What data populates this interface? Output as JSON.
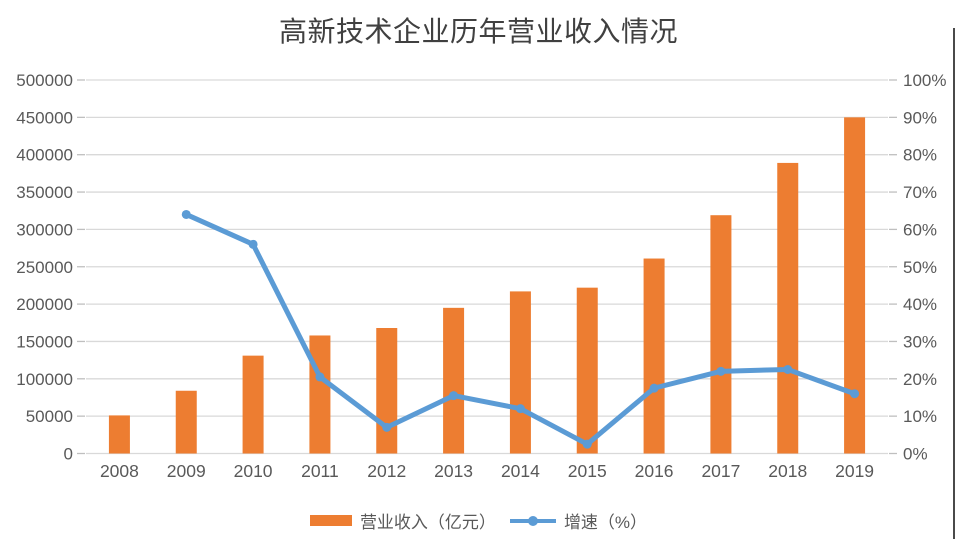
{
  "chart": {
    "title": "高新技术企业历年营业收入情况"
  },
  "chart_data": {
    "type": "bar+line",
    "title": "高新技术企业历年营业收入情况",
    "categories": [
      "2008",
      "2009",
      "2010",
      "2011",
      "2012",
      "2013",
      "2014",
      "2015",
      "2016",
      "2017",
      "2018",
      "2019"
    ],
    "series": [
      {
        "name": "营业收入（亿元）",
        "type": "bar",
        "axis": "left",
        "color": "#ED7D31",
        "values": [
          51000,
          84000,
          131000,
          158000,
          168000,
          195000,
          217000,
          222000,
          261000,
          319000,
          389000,
          450000
        ]
      },
      {
        "name": "增速（%）",
        "type": "line",
        "axis": "right",
        "color": "#5B9BD5",
        "values": [
          null,
          64,
          56,
          20.5,
          7,
          15.5,
          12,
          2.5,
          17.5,
          22,
          22.5,
          16
        ]
      }
    ],
    "left_axis": {
      "min": 0,
      "max": 500000,
      "step": 50000,
      "tick_labels": [
        "0",
        "50000",
        "100000",
        "150000",
        "200000",
        "250000",
        "300000",
        "350000",
        "400000",
        "450000",
        "500000"
      ]
    },
    "right_axis": {
      "min": 0,
      "max": 100,
      "step": 10,
      "suffix": "%",
      "tick_labels": [
        "0%",
        "10%",
        "20%",
        "30%",
        "40%",
        "50%",
        "60%",
        "70%",
        "80%",
        "90%",
        "100%"
      ]
    },
    "grid": true,
    "legend_position": "bottom"
  },
  "colors": {
    "grid": "#D9D9D9",
    "tick": "#BFBFBF",
    "axis_text": "#595959",
    "title_text": "#404040",
    "right_border": "#4A4A4A"
  }
}
